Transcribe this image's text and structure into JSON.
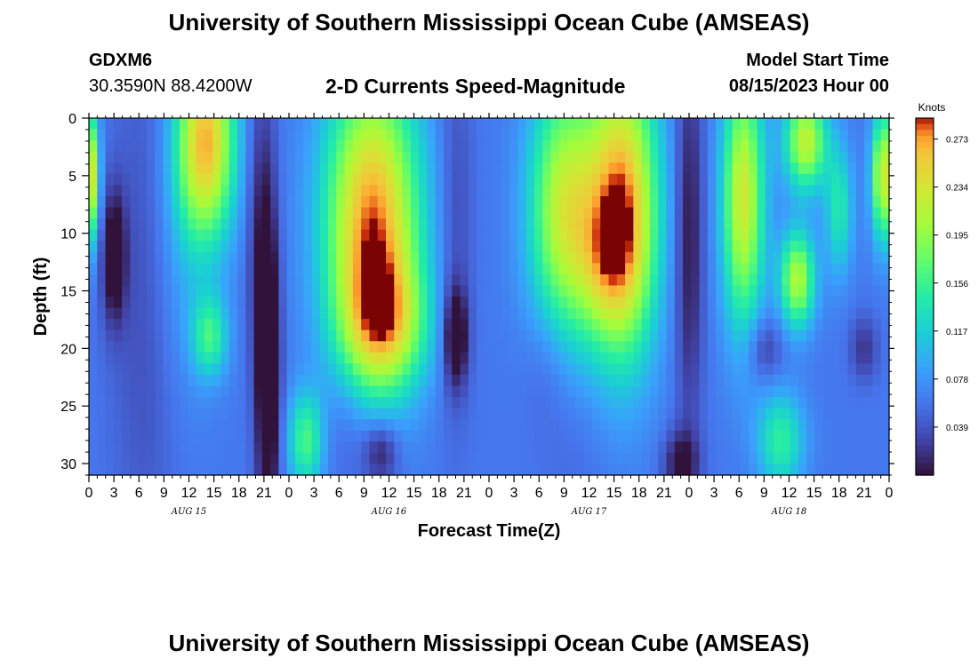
{
  "header": {
    "title": "University of Southern Mississippi Ocean Cube (AMSEAS)",
    "station": "GDXM6",
    "coords": "30.3590N  88.4200W",
    "subtitle": "2-D Currents Speed-Magnitude",
    "start_label": "Model Start Time",
    "start_value": "08/15/2023 Hour 00"
  },
  "footer": {
    "title": "University of Southern Mississippi Ocean Cube (AMSEAS)"
  },
  "chart_data": {
    "type": "heatmap",
    "title": "2-D Currents Speed-Magnitude",
    "xlabel": "Forecast Time(Z)",
    "ylabel": "Depth (ft)",
    "x_tick_labels": [
      "0",
      "3",
      "6",
      "9",
      "12",
      "15",
      "18",
      "21",
      "0",
      "3",
      "6",
      "9",
      "12",
      "15",
      "18",
      "21",
      "0",
      "3",
      "6",
      "9",
      "12",
      "15",
      "18",
      "21",
      "0",
      "3",
      "6",
      "9",
      "12",
      "15",
      "18",
      "21",
      "0"
    ],
    "day_labels": [
      {
        "label": "AUG 15",
        "hour": 12
      },
      {
        "label": "AUG 16",
        "hour": 36
      },
      {
        "label": "AUG 17",
        "hour": 60
      },
      {
        "label": "AUG 18",
        "hour": 84
      }
    ],
    "xlim": [
      0,
      96
    ],
    "ylim": [
      0,
      31
    ],
    "y_ticks": [
      0,
      5,
      10,
      15,
      20,
      25,
      30
    ],
    "colorbar": {
      "label": "Knots",
      "ticks": [
        0.273,
        0.234,
        0.195,
        0.156,
        0.117,
        0.078,
        0.039
      ],
      "range": [
        0.0,
        0.29
      ]
    },
    "blobs": [
      {
        "t": 0,
        "d": 5,
        "st": 0.8,
        "sd": 4,
        "v": 0.2
      },
      {
        "t": 3,
        "d": 12,
        "st": 1.0,
        "sd": 4,
        "v": -0.08
      },
      {
        "t": 7,
        "d": 15,
        "st": 3,
        "sd": 16,
        "v": -0.03
      },
      {
        "t": 14,
        "d": 2,
        "st": 2.5,
        "sd": 6,
        "v": 0.2
      },
      {
        "t": 14.5,
        "d": 19,
        "st": 1.5,
        "sd": 2.5,
        "v": 0.09
      },
      {
        "t": 11,
        "d": 12,
        "st": 3,
        "sd": 10,
        "v": 0.03
      },
      {
        "t": 21.5,
        "d": 22,
        "st": 1.0,
        "sd": 10,
        "v": -0.1
      },
      {
        "t": 20.5,
        "d": 8,
        "st": 1.2,
        "sd": 10,
        "v": -0.04
      },
      {
        "t": 34,
        "d": 9,
        "st": 4.0,
        "sd": 9,
        "v": 0.22
      },
      {
        "t": 35.5,
        "d": 18,
        "st": 3.5,
        "sd": 4,
        "v": 0.12
      },
      {
        "t": 26,
        "d": 28,
        "st": 1.5,
        "sd": 3,
        "v": 0.1
      },
      {
        "t": 35,
        "d": 29,
        "st": 1.5,
        "sd": 2,
        "v": -0.06
      },
      {
        "t": 31,
        "d": 27,
        "st": 2,
        "sd": 4,
        "v": -0.02
      },
      {
        "t": 44,
        "d": 19,
        "st": 1.0,
        "sd": 3,
        "v": -0.08
      },
      {
        "t": 44,
        "d": 9,
        "st": 1.5,
        "sd": 12,
        "v": -0.03
      },
      {
        "t": 57,
        "d": 8,
        "st": 3,
        "sd": 8,
        "v": 0.16
      },
      {
        "t": 64,
        "d": 8,
        "st": 3,
        "sd": 9,
        "v": 0.22
      },
      {
        "t": 62,
        "d": 13,
        "st": 2.5,
        "sd": 4,
        "v": 0.05
      },
      {
        "t": 55,
        "d": 21,
        "st": 2,
        "sd": 4,
        "v": -0.02
      },
      {
        "t": 58,
        "d": 28,
        "st": 3,
        "sd": 5,
        "v": -0.01
      },
      {
        "t": 72,
        "d": 10,
        "st": 1.2,
        "sd": 12,
        "v": -0.06
      },
      {
        "t": 71,
        "d": 30,
        "st": 1.5,
        "sd": 2,
        "v": -0.06
      },
      {
        "t": 78.5,
        "d": 7,
        "st": 1.8,
        "sd": 8,
        "v": 0.17
      },
      {
        "t": 85,
        "d": 14,
        "st": 1.5,
        "sd": 3,
        "v": 0.15
      },
      {
        "t": 86,
        "d": 2,
        "st": 1.8,
        "sd": 3,
        "v": 0.16
      },
      {
        "t": 83,
        "d": 28,
        "st": 2,
        "sd": 3,
        "v": 0.09
      },
      {
        "t": 90,
        "d": 8,
        "st": 1.2,
        "sd": 4,
        "v": 0.08
      },
      {
        "t": 95.3,
        "d": 5,
        "st": 1.0,
        "sd": 4,
        "v": 0.17
      },
      {
        "t": 81,
        "d": 20,
        "st": 1.5,
        "sd": 2,
        "v": -0.04
      },
      {
        "t": 93,
        "d": 20,
        "st": 1.2,
        "sd": 2,
        "v": -0.04
      }
    ],
    "base_value": 0.06
  }
}
